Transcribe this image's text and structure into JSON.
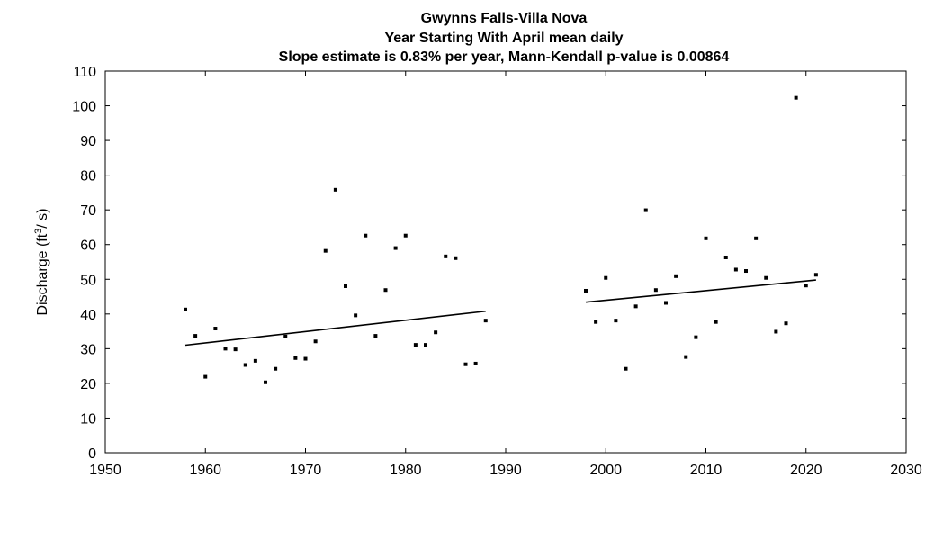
{
  "chart_data": {
    "type": "scatter",
    "title_lines": [
      "Gwynns Falls-Villa Nova",
      "Year Starting With April  mean daily",
      "Slope estimate is 0.83% per year, Mann-Kendall p-value is 0.00864"
    ],
    "xlabel": "",
    "ylabel": {
      "prefix": "Discharge (ft",
      "superscript": "3",
      "suffix": "/ s)"
    },
    "xlim": [
      1950,
      2030
    ],
    "ylim": [
      0,
      110
    ],
    "xticks": [
      1950,
      1960,
      1970,
      1980,
      1990,
      2000,
      2010,
      2020,
      2030
    ],
    "yticks": [
      0,
      10,
      20,
      30,
      40,
      50,
      60,
      70,
      80,
      90,
      100,
      110
    ],
    "grid": false,
    "colors": {
      "marker": "#000000",
      "axes": "#000000",
      "background": "#ffffff"
    },
    "points": [
      [
        1958,
        41.3
      ],
      [
        1959,
        33.7
      ],
      [
        1960,
        21.9
      ],
      [
        1961,
        35.8
      ],
      [
        1962,
        30.0
      ],
      [
        1963,
        29.8
      ],
      [
        1964,
        25.3
      ],
      [
        1965,
        26.5
      ],
      [
        1966,
        20.3
      ],
      [
        1967,
        24.2
      ],
      [
        1968,
        33.5
      ],
      [
        1969,
        27.3
      ],
      [
        1970,
        27.1
      ],
      [
        1971,
        32.1
      ],
      [
        1972,
        58.2
      ],
      [
        1973,
        75.8
      ],
      [
        1974,
        48.0
      ],
      [
        1975,
        39.6
      ],
      [
        1976,
        62.6
      ],
      [
        1977,
        33.7
      ],
      [
        1978,
        46.9
      ],
      [
        1979,
        59.0
      ],
      [
        1980,
        62.6
      ],
      [
        1981,
        31.1
      ],
      [
        1982,
        31.1
      ],
      [
        1983,
        34.7
      ],
      [
        1984,
        56.6
      ],
      [
        1985,
        56.1
      ],
      [
        1986,
        25.5
      ],
      [
        1987,
        25.7
      ],
      [
        1988,
        38.1
      ],
      [
        1998,
        46.7
      ],
      [
        1999,
        37.7
      ],
      [
        2000,
        50.4
      ],
      [
        2001,
        38.1
      ],
      [
        2002,
        24.2
      ],
      [
        2003,
        42.2
      ],
      [
        2004,
        69.9
      ],
      [
        2005,
        46.9
      ],
      [
        2006,
        43.2
      ],
      [
        2007,
        50.9
      ],
      [
        2008,
        27.6
      ],
      [
        2009,
        33.3
      ],
      [
        2010,
        61.8
      ],
      [
        2011,
        37.7
      ],
      [
        2012,
        56.3
      ],
      [
        2013,
        52.8
      ],
      [
        2014,
        52.4
      ],
      [
        2015,
        61.8
      ],
      [
        2016,
        50.4
      ],
      [
        2017,
        34.9
      ],
      [
        2018,
        37.3
      ],
      [
        2019,
        102.3
      ],
      [
        2020,
        48.2
      ],
      [
        2021,
        51.3
      ]
    ],
    "trend_segments": [
      {
        "x": [
          1958,
          1988
        ],
        "y": [
          31.0,
          40.8
        ]
      },
      {
        "x": [
          1998,
          2021
        ],
        "y": [
          43.4,
          49.8
        ]
      }
    ]
  }
}
